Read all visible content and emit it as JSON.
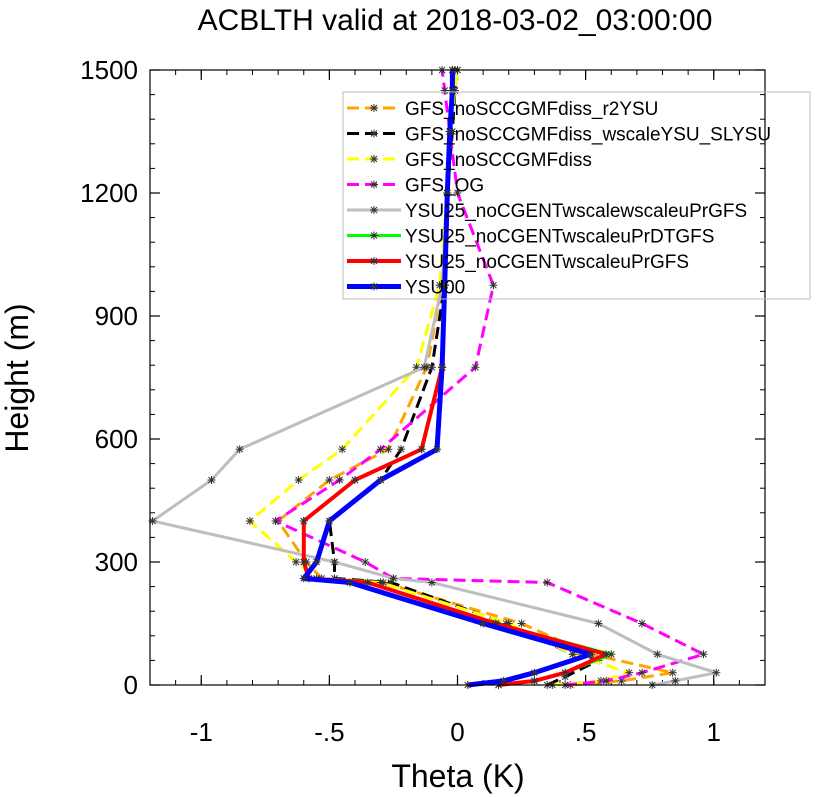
{
  "chart_data": {
    "type": "line",
    "title": "ACBLTH valid at 2018-03-02_03:00:00",
    "xlabel": "Theta (K)",
    "ylabel": "Height (m)",
    "xlim": [
      -1.2,
      1.2
    ],
    "ylim": [
      0,
      1500
    ],
    "xticks": [
      -1,
      -0.5,
      0,
      0.5,
      1
    ],
    "xtick_labels": [
      "-1",
      "-.5",
      "0",
      ".5",
      "1"
    ],
    "yticks": [
      0,
      300,
      600,
      900,
      1200,
      1500
    ],
    "ytick_labels": [
      "0",
      "300",
      "600",
      "900",
      "1200",
      "1500"
    ],
    "grid": false,
    "legend_position": "top-right",
    "series": [
      {
        "name": "GFS_noSCCGMFdiss_r2YSU",
        "color": "#FFA500",
        "dash": "dashed",
        "width": 3,
        "x": [
          0.44,
          0.64,
          0.84,
          0.52,
          0.25,
          -0.29,
          -0.53,
          -0.59,
          -0.7,
          -0.5,
          -0.27,
          -0.12,
          -0.06,
          -0.04,
          -0.03,
          -0.02,
          -0.01
        ],
        "y": [
          0,
          10,
          30,
          75,
          150,
          250,
          260,
          300,
          400,
          500,
          575,
          775,
          975,
          1200,
          1350,
          1450,
          1500
        ]
      },
      {
        "name": "GFS_noSCCGMFdiss_wscaleYSU_SLYSU",
        "color": "#000000",
        "dash": "dashed",
        "width": 3,
        "x": [
          0.35,
          0.42,
          0.55,
          0.45,
          0.19,
          -0.26,
          -0.48,
          -0.48,
          -0.5,
          -0.3,
          -0.22,
          -0.1,
          -0.05,
          -0.04,
          -0.02,
          -0.01,
          0.0
        ],
        "y": [
          0,
          20,
          60,
          75,
          150,
          250,
          260,
          300,
          400,
          500,
          575,
          775,
          975,
          1200,
          1350,
          1450,
          1500
        ]
      },
      {
        "name": "GFS_noSCCGMFdiss",
        "color": "#FFFF00",
        "dash": "dashed",
        "width": 3,
        "x": [
          0.37,
          0.56,
          0.67,
          0.45,
          0.2,
          -0.3,
          -0.55,
          -0.63,
          -0.81,
          -0.62,
          -0.45,
          -0.16,
          -0.07,
          -0.04,
          -0.03,
          -0.01,
          0.0
        ],
        "y": [
          0,
          10,
          30,
          75,
          150,
          250,
          260,
          300,
          400,
          500,
          575,
          775,
          975,
          1200,
          1350,
          1450,
          1500
        ]
      },
      {
        "name": "GFS_OG",
        "color": "#FF00FF",
        "dash": "dashed",
        "width": 3,
        "x": [
          0.42,
          0.58,
          0.72,
          0.96,
          0.72,
          0.35,
          -0.25,
          -0.36,
          -0.71,
          -0.46,
          -0.3,
          0.07,
          0.14,
          0.0,
          -0.03,
          -0.05,
          -0.06
        ],
        "y": [
          0,
          10,
          30,
          75,
          150,
          250,
          260,
          300,
          400,
          500,
          575,
          775,
          975,
          1200,
          1350,
          1450,
          1500
        ]
      },
      {
        "name": "YSU25_noCGENTwscalewscaleuPrGFS",
        "color": "#BEBEBE",
        "dash": "solid",
        "width": 3,
        "x": [
          0.76,
          0.85,
          1.01,
          0.78,
          0.55,
          -0.1,
          -0.25,
          -0.48,
          -1.19,
          -0.96,
          -0.85,
          -0.13,
          -0.06,
          -0.04,
          -0.03,
          -0.02,
          -0.01
        ],
        "y": [
          0,
          10,
          30,
          75,
          150,
          250,
          260,
          300,
          400,
          500,
          575,
          775,
          975,
          1200,
          1350,
          1450,
          1500
        ]
      },
      {
        "name": "YSU25_noCGENTwscaleuPrDTGFS",
        "color": "#00FF00",
        "dash": "solid",
        "width": 3,
        "x": [
          0.16,
          0.3,
          0.42,
          0.6,
          0.15,
          -0.35,
          -0.58,
          -0.6,
          -0.6,
          -0.4,
          -0.14,
          -0.06,
          -0.05,
          -0.04,
          -0.03,
          -0.02,
          -0.02
        ],
        "y": [
          0,
          10,
          30,
          75,
          150,
          250,
          260,
          300,
          400,
          500,
          575,
          775,
          975,
          1200,
          1350,
          1450,
          1500
        ]
      },
      {
        "name": "YSU25_noCGENTwscaleuPrGFS",
        "color": "#FF0000",
        "dash": "solid",
        "width": 4,
        "x": [
          0.16,
          0.3,
          0.42,
          0.58,
          0.15,
          -0.35,
          -0.58,
          -0.6,
          -0.6,
          -0.4,
          -0.14,
          -0.06,
          -0.05,
          -0.04,
          -0.03,
          -0.02,
          -0.02
        ],
        "y": [
          0,
          10,
          30,
          75,
          150,
          250,
          260,
          300,
          400,
          500,
          575,
          775,
          975,
          1200,
          1350,
          1450,
          1500
        ]
      },
      {
        "name": "YSU00",
        "color": "#0000FF",
        "dash": "solid",
        "width": 5,
        "x": [
          0.04,
          0.18,
          0.3,
          0.52,
          0.1,
          -0.42,
          -0.6,
          -0.55,
          -0.5,
          -0.3,
          -0.08,
          -0.06,
          -0.05,
          -0.04,
          -0.03,
          -0.02,
          -0.02
        ],
        "y": [
          0,
          10,
          30,
          75,
          150,
          250,
          260,
          300,
          400,
          500,
          575,
          775,
          975,
          1200,
          1350,
          1450,
          1500
        ]
      }
    ]
  }
}
